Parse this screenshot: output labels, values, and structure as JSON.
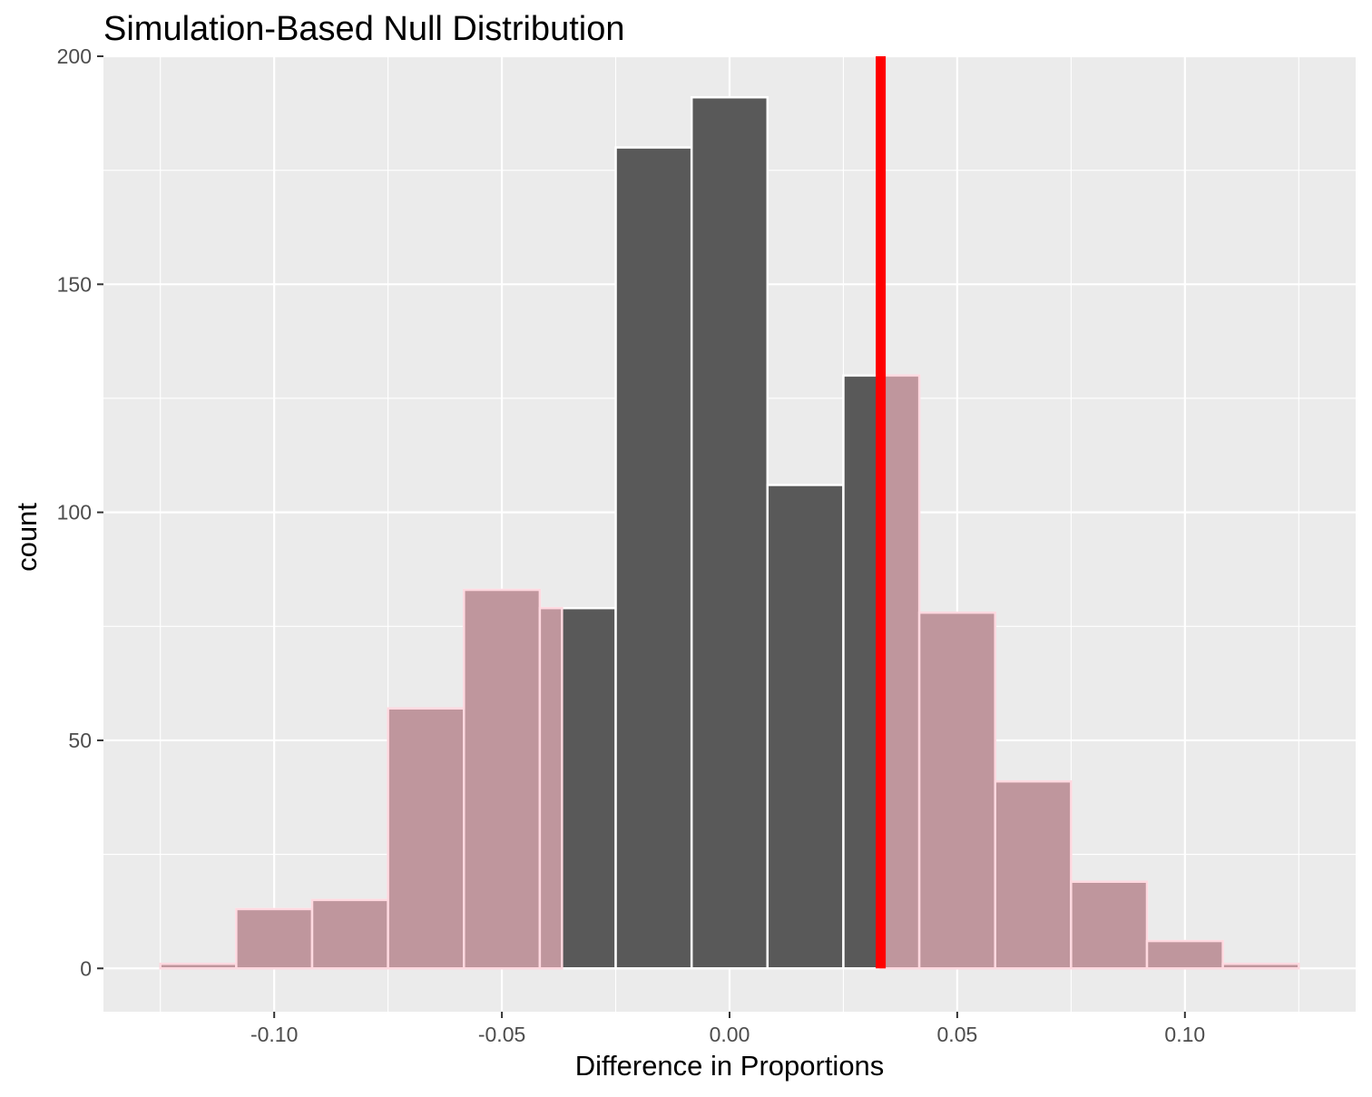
{
  "chart_data": {
    "type": "bar",
    "title": "Simulation-Based Null Distribution",
    "xlabel": "Difference in Proportions",
    "ylabel": "count",
    "xlim": [
      -0.1375,
      0.1375
    ],
    "ylim": [
      -9.5,
      200
    ],
    "x_ticks": [
      -0.1,
      -0.05,
      0.0,
      0.05,
      0.1
    ],
    "x_tick_labels": [
      "-0.10",
      "-0.05",
      "0.00",
      "0.05",
      "0.10"
    ],
    "y_ticks": [
      0,
      50,
      100,
      150,
      200
    ],
    "y_tick_labels": [
      "0",
      "50",
      "100",
      "150",
      "200"
    ],
    "bin_width": 0.01667,
    "bins": [
      {
        "xmin": -0.125,
        "xmax": -0.10833,
        "count": 1
      },
      {
        "xmin": -0.10833,
        "xmax": -0.09167,
        "count": 13
      },
      {
        "xmin": -0.09167,
        "xmax": -0.075,
        "count": 15
      },
      {
        "xmin": -0.075,
        "xmax": -0.05833,
        "count": 57
      },
      {
        "xmin": -0.05833,
        "xmax": -0.04167,
        "count": 83
      },
      {
        "xmin": -0.04167,
        "xmax": -0.025,
        "count": 79
      },
      {
        "xmin": -0.025,
        "xmax": -0.00833,
        "count": 180
      },
      {
        "xmin": -0.00833,
        "xmax": 0.00833,
        "count": 191
      },
      {
        "xmin": 0.00833,
        "xmax": 0.025,
        "count": 106
      },
      {
        "xmin": 0.025,
        "xmax": 0.04167,
        "count": 130
      },
      {
        "xmin": 0.04167,
        "xmax": 0.05833,
        "count": 78
      },
      {
        "xmin": 0.05833,
        "xmax": 0.075,
        "count": 41
      },
      {
        "xmin": 0.075,
        "xmax": 0.09167,
        "count": 19
      },
      {
        "xmin": 0.09167,
        "xmax": 0.10833,
        "count": 6
      },
      {
        "xmin": 0.10833,
        "xmax": 0.125,
        "count": 1
      }
    ],
    "shaded_regions": [
      {
        "from": -0.125,
        "to": -0.0368
      },
      {
        "from": 0.0332,
        "to": 0.125
      }
    ],
    "observed_statistic": 0.0332,
    "colors": {
      "bar": "#595959",
      "shade": "#bf969d",
      "shade_outline": "#ffd9e0",
      "bar_outline": "#ffffff",
      "observed_line": "#ff0000",
      "panel": "#ebebeb",
      "grid": "#ffffff"
    },
    "grid": true,
    "legend": "none"
  }
}
